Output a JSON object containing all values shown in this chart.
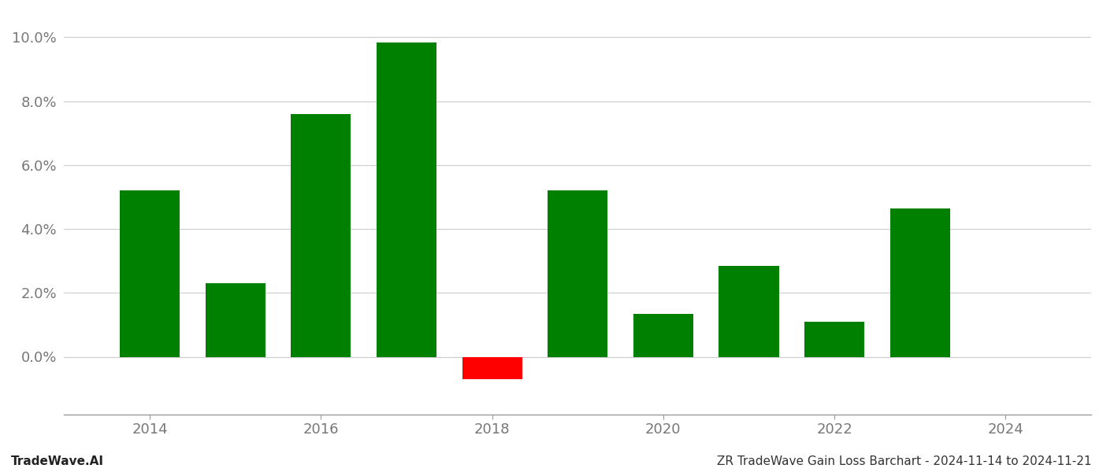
{
  "years": [
    2014,
    2015,
    2016,
    2017,
    2018,
    2019,
    2020,
    2021,
    2022,
    2023
  ],
  "values": [
    0.052,
    0.023,
    0.076,
    0.0985,
    -0.007,
    0.052,
    0.0135,
    0.0285,
    0.011,
    0.0465
  ],
  "bar_width": 0.7,
  "green_color": "#008000",
  "red_color": "#ff0000",
  "background_color": "#ffffff",
  "grid_color": "#cccccc",
  "ylabel_ticks": [
    0.0,
    0.02,
    0.04,
    0.06,
    0.08,
    0.1
  ],
  "ylim": [
    -0.018,
    0.108
  ],
  "xlim": [
    2013.0,
    2025.0
  ],
  "footer_left": "TradeWave.AI",
  "footer_right": "ZR TradeWave Gain Loss Barchart - 2024-11-14 to 2024-11-21",
  "footer_fontsize": 11,
  "tick_fontsize": 13,
  "spine_color": "#999999",
  "xticks": [
    2014,
    2016,
    2018,
    2020,
    2022,
    2024
  ]
}
